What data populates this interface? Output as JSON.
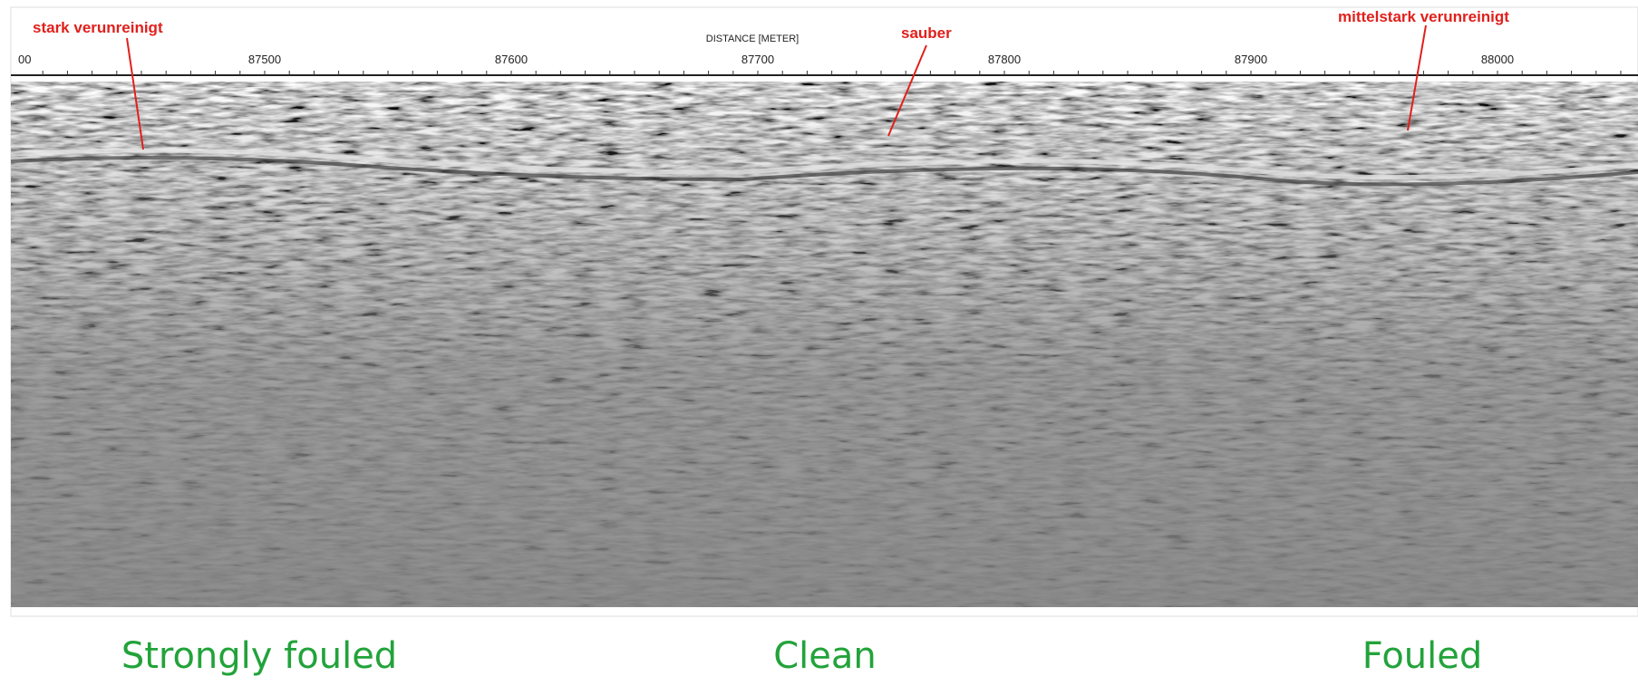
{
  "axis": {
    "label": "DISTANCE [METER]",
    "ticks": [
      "00",
      "87500",
      "87600",
      "87700",
      "87800",
      "87900",
      "88000"
    ]
  },
  "annotations": [
    "stark verunreinigt",
    "sauber",
    "mittelstark verunreinigt"
  ],
  "captions": [
    "Strongly fouled",
    "Clean",
    "Fouled"
  ]
}
